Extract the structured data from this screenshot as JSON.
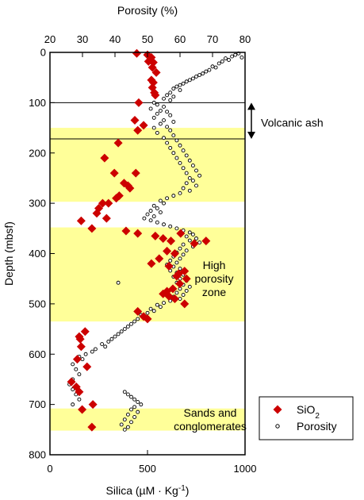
{
  "chart_data": {
    "type": "scatter",
    "y_axis": {
      "label": "Depth (mbsf)",
      "range": [
        0,
        800
      ],
      "inverted": true,
      "ticks": [
        0,
        100,
        200,
        300,
        400,
        500,
        600,
        700,
        800
      ]
    },
    "x_axis_bottom": {
      "label_prefix": "Silica (µM · Kg",
      "label_sup": "-1",
      "label_suffix": ")",
      "range": [
        0,
        1000
      ],
      "ticks": [
        0,
        500,
        1000
      ]
    },
    "x_axis_top": {
      "label": "Porosity (%)",
      "range": [
        20,
        80
      ],
      "ticks": [
        20,
        30,
        40,
        50,
        60,
        70,
        80
      ]
    },
    "shaded_zones": [
      {
        "depth": [
          150,
          297
        ],
        "color": "#ffff99"
      },
      {
        "depth": [
          348,
          535
        ],
        "color": "#ffff99"
      },
      {
        "depth": [
          708,
          752
        ],
        "color": "#ffff99"
      }
    ],
    "horizontal_lines": [
      100,
      172
    ],
    "annotations": [
      {
        "lines": [
          "Volcanic ash"
        ],
        "depth": 140,
        "anchor": "right-outside"
      },
      {
        "lines": [
          "High",
          "porosity",
          "zone"
        ],
        "depth": 450,
        "anchor": "inside"
      },
      {
        "lines": [
          "Sands and",
          "conglomerates"
        ],
        "depth": 730,
        "anchor": "inside"
      }
    ],
    "legend": {
      "placement": "bottom-right-outside"
    },
    "series": [
      {
        "name": "SiO",
        "name_sub": "2",
        "axis": "silica",
        "marker": "diamond",
        "color": "#cc0000",
        "points": [
          [
            445,
            2
          ],
          [
            500,
            5
          ],
          [
            520,
            10
          ],
          [
            515,
            15
          ],
          [
            505,
            18
          ],
          [
            530,
            20
          ],
          [
            525,
            30
          ],
          [
            545,
            40
          ],
          [
            520,
            55
          ],
          [
            530,
            60
          ],
          [
            525,
            70
          ],
          [
            535,
            80
          ],
          [
            540,
            85
          ],
          [
            455,
            100
          ],
          [
            435,
            135
          ],
          [
            450,
            155
          ],
          [
            480,
            145
          ],
          [
            350,
            180
          ],
          [
            280,
            210
          ],
          [
            330,
            240
          ],
          [
            440,
            240
          ],
          [
            380,
            260
          ],
          [
            400,
            265
          ],
          [
            410,
            270
          ],
          [
            355,
            285
          ],
          [
            340,
            290
          ],
          [
            270,
            300
          ],
          [
            300,
            300
          ],
          [
            250,
            310
          ],
          [
            290,
            330
          ],
          [
            240,
            320
          ],
          [
            160,
            335
          ],
          [
            215,
            350
          ],
          [
            390,
            355
          ],
          [
            450,
            360
          ],
          [
            540,
            365
          ],
          [
            580,
            370
          ],
          [
            620,
            375
          ],
          [
            670,
            360
          ],
          [
            740,
            380
          ],
          [
            800,
            375
          ],
          [
            600,
            395
          ],
          [
            640,
            400
          ],
          [
            560,
            410
          ],
          [
            520,
            420
          ],
          [
            610,
            425
          ],
          [
            660,
            440
          ],
          [
            690,
            435
          ],
          [
            650,
            445
          ],
          [
            700,
            450
          ],
          [
            665,
            460
          ],
          [
            630,
            470
          ],
          [
            600,
            475
          ],
          [
            580,
            480
          ],
          [
            610,
            485
          ],
          [
            640,
            490
          ],
          [
            690,
            500
          ],
          [
            450,
            515
          ],
          [
            480,
            525
          ],
          [
            500,
            530
          ],
          [
            180,
            555
          ],
          [
            150,
            565
          ],
          [
            155,
            570
          ],
          [
            160,
            585
          ],
          [
            140,
            610
          ],
          [
            190,
            625
          ],
          [
            110,
            655
          ],
          [
            135,
            665
          ],
          [
            150,
            675
          ],
          [
            220,
            700
          ],
          [
            165,
            710
          ],
          [
            215,
            745
          ]
        ]
      },
      {
        "name": "Porosity",
        "axis": "porosity",
        "marker": "circle",
        "color": "#000000",
        "points": [
          [
            78,
            2
          ],
          [
            77,
            5
          ],
          [
            76,
            8
          ],
          [
            79,
            10
          ],
          [
            74,
            12
          ],
          [
            75,
            15
          ],
          [
            73,
            18
          ],
          [
            72,
            22
          ],
          [
            70,
            28
          ],
          [
            71,
            30
          ],
          [
            69,
            35
          ],
          [
            68,
            38
          ],
          [
            67,
            42
          ],
          [
            66,
            45
          ],
          [
            65,
            48
          ],
          [
            64,
            52
          ],
          [
            63,
            55
          ],
          [
            62,
            58
          ],
          [
            61,
            62
          ],
          [
            60,
            65
          ],
          [
            59,
            68
          ],
          [
            58,
            72
          ],
          [
            60,
            75
          ],
          [
            57,
            80
          ],
          [
            56,
            85
          ],
          [
            58,
            88
          ],
          [
            55,
            92
          ],
          [
            57,
            95
          ],
          [
            52,
            100
          ],
          [
            53,
            104
          ],
          [
            55,
            108
          ],
          [
            51,
            112
          ],
          [
            54,
            116
          ],
          [
            56,
            118
          ],
          [
            53,
            122
          ],
          [
            57,
            125
          ],
          [
            52,
            130
          ],
          [
            55,
            135
          ],
          [
            58,
            138
          ],
          [
            54,
            142
          ],
          [
            56,
            148
          ],
          [
            52,
            150
          ],
          [
            57,
            155
          ],
          [
            53,
            160
          ],
          [
            58,
            165
          ],
          [
            55,
            170
          ],
          [
            59,
            175
          ],
          [
            56,
            180
          ],
          [
            60,
            185
          ],
          [
            57,
            190
          ],
          [
            61,
            195
          ],
          [
            58,
            200
          ],
          [
            62,
            205
          ],
          [
            59,
            210
          ],
          [
            63,
            215
          ],
          [
            60,
            220
          ],
          [
            64,
            225
          ],
          [
            61,
            230
          ],
          [
            65,
            235
          ],
          [
            62,
            240
          ],
          [
            66,
            245
          ],
          [
            63,
            250
          ],
          [
            64,
            255
          ],
          [
            62,
            260
          ],
          [
            65,
            265
          ],
          [
            61,
            270
          ],
          [
            63,
            275
          ],
          [
            60,
            280
          ],
          [
            58,
            285
          ],
          [
            56,
            290
          ],
          [
            54,
            295
          ],
          [
            55,
            300
          ],
          [
            52,
            305
          ],
          [
            53,
            310
          ],
          [
            51,
            315
          ],
          [
            54,
            318
          ],
          [
            50,
            322
          ],
          [
            52,
            326
          ],
          [
            49,
            330
          ],
          [
            51,
            334
          ],
          [
            53,
            338
          ],
          [
            55,
            342
          ],
          [
            57,
            346
          ],
          [
            59,
            350
          ],
          [
            61,
            354
          ],
          [
            63,
            358
          ],
          [
            64,
            362
          ],
          [
            62,
            366
          ],
          [
            65,
            370
          ],
          [
            63,
            374
          ],
          [
            66,
            378
          ],
          [
            61,
            382
          ],
          [
            64,
            386
          ],
          [
            60,
            390
          ],
          [
            62,
            394
          ],
          [
            59,
            398
          ],
          [
            61,
            402
          ],
          [
            58,
            406
          ],
          [
            60,
            410
          ],
          [
            57,
            414
          ],
          [
            59,
            418
          ],
          [
            56,
            422
          ],
          [
            58,
            426
          ],
          [
            60,
            430
          ],
          [
            57,
            434
          ],
          [
            59,
            438
          ],
          [
            61,
            442
          ],
          [
            58,
            446
          ],
          [
            60,
            450
          ],
          [
            62,
            454
          ],
          [
            59,
            458
          ],
          [
            41,
            458
          ],
          [
            61,
            462
          ],
          [
            63,
            466
          ],
          [
            60,
            470
          ],
          [
            62,
            474
          ],
          [
            59,
            478
          ],
          [
            61,
            482
          ],
          [
            58,
            486
          ],
          [
            60,
            490
          ],
          [
            57,
            494
          ],
          [
            55,
            498
          ],
          [
            53,
            502
          ],
          [
            54,
            506
          ],
          [
            51,
            510
          ],
          [
            52,
            514
          ],
          [
            50,
            518
          ],
          [
            48,
            522
          ],
          [
            49,
            526
          ],
          [
            47,
            530
          ],
          [
            46,
            535
          ],
          [
            45,
            540
          ],
          [
            44,
            545
          ],
          [
            43,
            550
          ],
          [
            42,
            555
          ],
          [
            41,
            560
          ],
          [
            40,
            565
          ],
          [
            39,
            570
          ],
          [
            38,
            575
          ],
          [
            36,
            580
          ],
          [
            37,
            585
          ],
          [
            34,
            590
          ],
          [
            33,
            595
          ],
          [
            31,
            600
          ],
          [
            29,
            605
          ],
          [
            30,
            610
          ],
          [
            27,
            620
          ],
          [
            28,
            630
          ],
          [
            29,
            640
          ],
          [
            27,
            650
          ],
          [
            26,
            660
          ],
          [
            27,
            670
          ],
          [
            28,
            680
          ],
          [
            29,
            690
          ],
          [
            27,
            700
          ],
          [
            43,
            675
          ],
          [
            44,
            680
          ],
          [
            45,
            685
          ],
          [
            46,
            690
          ],
          [
            47,
            695
          ],
          [
            48,
            700
          ],
          [
            46,
            705
          ],
          [
            45,
            710
          ],
          [
            47,
            715
          ],
          [
            44,
            720
          ],
          [
            46,
            725
          ],
          [
            43,
            730
          ],
          [
            45,
            735
          ],
          [
            42,
            740
          ],
          [
            44,
            745
          ],
          [
            43,
            750
          ]
        ]
      }
    ]
  }
}
